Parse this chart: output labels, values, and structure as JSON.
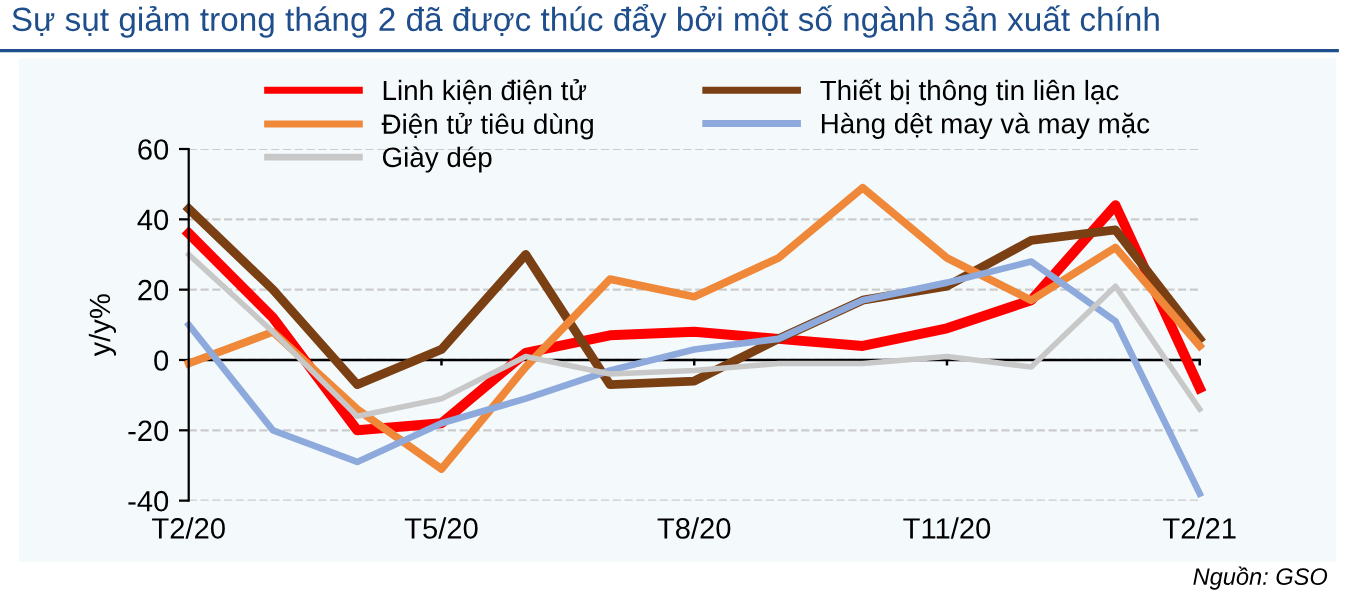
{
  "chart_data": {
    "type": "line",
    "title": "Sự sụt giảm trong tháng 2 đã được thúc đẩy bởi một số ngành sản xuất chính",
    "ylabel": "y/y%",
    "categories": [
      "T2/20",
      null,
      null,
      "T5/20",
      null,
      null,
      "T8/20",
      null,
      null,
      "T11/20",
      null,
      null,
      "T2/21"
    ],
    "series": [
      {
        "name": "Linh kiện điện tử",
        "color": "#ff0000",
        "values": [
          36,
          12,
          -20,
          -18,
          2,
          7,
          8,
          6,
          4,
          9,
          17,
          44,
          -8
        ]
      },
      {
        "name": "Thiết bị thông tin liên lạc",
        "color": "#7b3f14",
        "values": [
          43,
          20,
          -7,
          3,
          30,
          -7,
          -6,
          6,
          17,
          21,
          34,
          37,
          6
        ]
      },
      {
        "name": "Điện tử tiêu dùng",
        "color": "#f0883a",
        "values": [
          -1,
          8,
          -14,
          -31,
          -2,
          23,
          18,
          29,
          49,
          29,
          17,
          32,
          4
        ]
      },
      {
        "name": "Hàng dệt may và may mặc",
        "color": "#8eaadc",
        "values": [
          10,
          -20,
          -29,
          -18,
          -11,
          -3,
          3,
          6,
          17,
          22,
          28,
          11,
          -38
        ]
      },
      {
        "name": "Giày dép",
        "color": "#c8c8c8",
        "values": [
          30,
          8,
          -16,
          -11,
          1,
          -4,
          -3,
          -1,
          -1,
          1,
          -2,
          21,
          -14
        ]
      }
    ],
    "ylim": [
      -40,
      60
    ],
    "yticks": [
      -40,
      -20,
      0,
      20,
      40,
      60
    ],
    "grid": "y",
    "legend": "top",
    "marker": "none",
    "line_style": "solid",
    "annotations": [
      "Nguồn: GSO"
    ]
  }
}
